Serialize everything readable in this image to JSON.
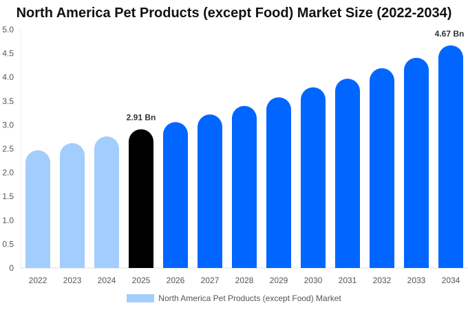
{
  "chart_data": {
    "type": "bar",
    "title": "North America Pet Products (except Food) Market Size (2022-2034)",
    "categories": [
      "2022",
      "2023",
      "2024",
      "2025",
      "2026",
      "2027",
      "2028",
      "2029",
      "2030",
      "2031",
      "2032",
      "2033",
      "2034"
    ],
    "series": [
      {
        "name": "North America Pet Products (except Food) Market",
        "values": [
          2.47,
          2.62,
          2.76,
          2.91,
          3.06,
          3.22,
          3.4,
          3.58,
          3.79,
          3.97,
          4.19,
          4.41,
          4.67
        ]
      }
    ],
    "data_labels": [
      {
        "index": 3,
        "text": "2.91 Bn"
      },
      {
        "index": 12,
        "text": "4.67 Bn"
      }
    ],
    "ylim": [
      0,
      5
    ],
    "yticks": [
      "0",
      "0.5",
      "1.0",
      "1.5",
      "2.0",
      "2.5",
      "3.0",
      "3.5",
      "4.0",
      "4.5",
      "5.0"
    ],
    "grid": false,
    "legend_position": "bottom",
    "colors": {
      "historical": "#a3cdfc",
      "base_year": "#000000",
      "forecast": "#0066ff"
    }
  }
}
